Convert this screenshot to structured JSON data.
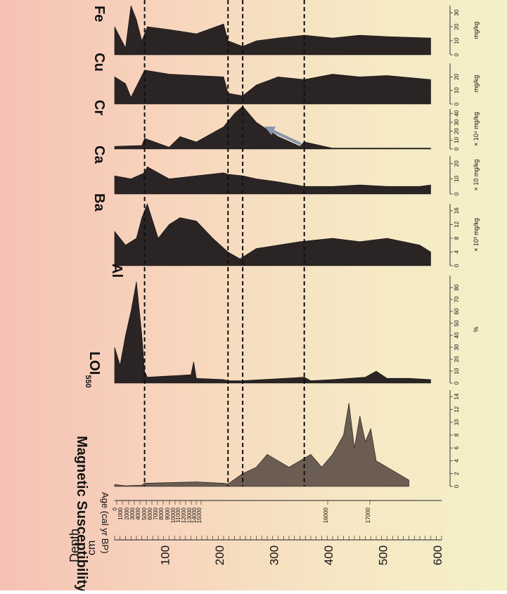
{
  "chart_data": {
    "type": "area",
    "depth_axis": {
      "label": "Depth",
      "unit": "cm",
      "ticks": [
        100,
        200,
        300,
        400,
        500,
        600
      ],
      "range": [
        0,
        600
      ]
    },
    "age_axis": {
      "label": "Age (cal yr BP)",
      "ticks": [
        "0",
        "1000",
        "2000",
        "3000",
        "4000",
        "5000",
        "6000",
        "7000",
        "8000",
        "9000",
        "10000",
        "11000",
        "12000",
        "13000",
        "14000",
        "15000",
        "16000",
        "17000"
      ]
    },
    "boundaries_depth_cm": [
      55,
      208,
      235,
      348
    ],
    "panels": [
      {
        "name": "Magnetic Susceptibility",
        "unit": "",
        "ticks": [
          0,
          2,
          4,
          6,
          8,
          10,
          12,
          14
        ],
        "range": [
          0,
          15
        ],
        "depth": [
          0,
          20,
          50,
          55,
          100,
          150,
          200,
          208,
          235,
          260,
          280,
          300,
          320,
          340,
          360,
          380,
          400,
          420,
          430,
          440,
          450,
          460,
          470,
          480,
          500,
          520,
          540
        ],
        "values": [
          0.3,
          0.1,
          0.2,
          0.5,
          0.6,
          0.7,
          0.5,
          0.4,
          2,
          3,
          5,
          4,
          3,
          4,
          5,
          3,
          5,
          8,
          13,
          6,
          11,
          7,
          9,
          4,
          3,
          2,
          1
        ]
      },
      {
        "name": "LOI",
        "sub": "550",
        "unit": "%",
        "ticks": [
          0,
          10,
          20,
          30,
          40,
          50,
          60,
          70,
          80
        ],
        "range": [
          0,
          90
        ],
        "depth": [
          0,
          10,
          20,
          30,
          40,
          50,
          55,
          60,
          100,
          140,
          145,
          150,
          200,
          208,
          235,
          348,
          360,
          400,
          460,
          480,
          500,
          540,
          580
        ],
        "values": [
          30,
          15,
          40,
          60,
          85,
          40,
          10,
          5,
          6,
          7,
          18,
          4,
          3,
          2,
          2,
          5,
          2,
          3,
          5,
          10,
          4,
          4,
          3
        ]
      },
      {
        "name": "Al",
        "unit": "mg/kg",
        "scale_note": "× 10³",
        "ticks": [
          0,
          4,
          8,
          12,
          16
        ],
        "range": [
          0,
          18
        ],
        "depth": [
          0,
          20,
          40,
          50,
          60,
          80,
          100,
          120,
          150,
          180,
          208,
          230,
          240,
          260,
          300,
          340,
          400,
          450,
          500,
          560,
          580
        ],
        "values": [
          10,
          6,
          8,
          14,
          18,
          8,
          12,
          14,
          13,
          8,
          4,
          2,
          3,
          5,
          6,
          7,
          8,
          7,
          8,
          6,
          4
        ]
      },
      {
        "name": "Ba",
        "unit": "mg/kg",
        "scale_note": "× 10",
        "ticks": [
          0,
          10,
          20
        ],
        "range": [
          0,
          25
        ],
        "depth": [
          0,
          30,
          55,
          60,
          100,
          150,
          200,
          208,
          235,
          260,
          300,
          348,
          400,
          450,
          500,
          560,
          580
        ],
        "values": [
          12,
          10,
          14,
          18,
          10,
          12,
          14,
          13,
          12,
          10,
          8,
          5,
          5,
          6,
          5,
          5,
          6
        ]
      },
      {
        "name": "Ca",
        "unit": "mg/kg",
        "scale_note": "× 10⁴",
        "ticks": [
          0,
          10,
          20,
          30,
          40
        ],
        "range": [
          0,
          45
        ],
        "depth": [
          0,
          50,
          55,
          100,
          120,
          150,
          200,
          220,
          235,
          260,
          300,
          340,
          348,
          400,
          500,
          580
        ],
        "values": [
          3,
          4,
          12,
          2,
          14,
          8,
          25,
          40,
          48,
          30,
          14,
          3,
          8,
          1,
          1,
          1
        ]
      },
      {
        "name": "Cr",
        "unit": "mg/kg",
        "ticks": [
          0,
          10,
          20
        ],
        "range": [
          0,
          30
        ],
        "depth": [
          0,
          20,
          30,
          55,
          100,
          150,
          200,
          208,
          235,
          260,
          300,
          348,
          400,
          450,
          500,
          580
        ],
        "values": [
          20,
          15,
          5,
          25,
          22,
          21,
          20,
          8,
          6,
          14,
          20,
          18,
          22,
          20,
          21,
          18
        ]
      },
      {
        "name": "Cu",
        "unit": "mg/kg",
        "ticks": [
          0,
          10,
          20,
          30
        ],
        "range": [
          0,
          35
        ],
        "depth": [
          0,
          20,
          30,
          40,
          50,
          60,
          100,
          150,
          200,
          208,
          235,
          260,
          300,
          348,
          400,
          450,
          500,
          580
        ],
        "values": [
          20,
          5,
          35,
          25,
          10,
          20,
          18,
          15,
          22,
          10,
          6,
          10,
          12,
          14,
          12,
          14,
          13,
          12
        ]
      },
      {
        "name": "Fe",
        "unit": "",
        "ticks": [],
        "range": [
          0,
          35
        ],
        "depth": [],
        "values": []
      }
    ]
  }
}
